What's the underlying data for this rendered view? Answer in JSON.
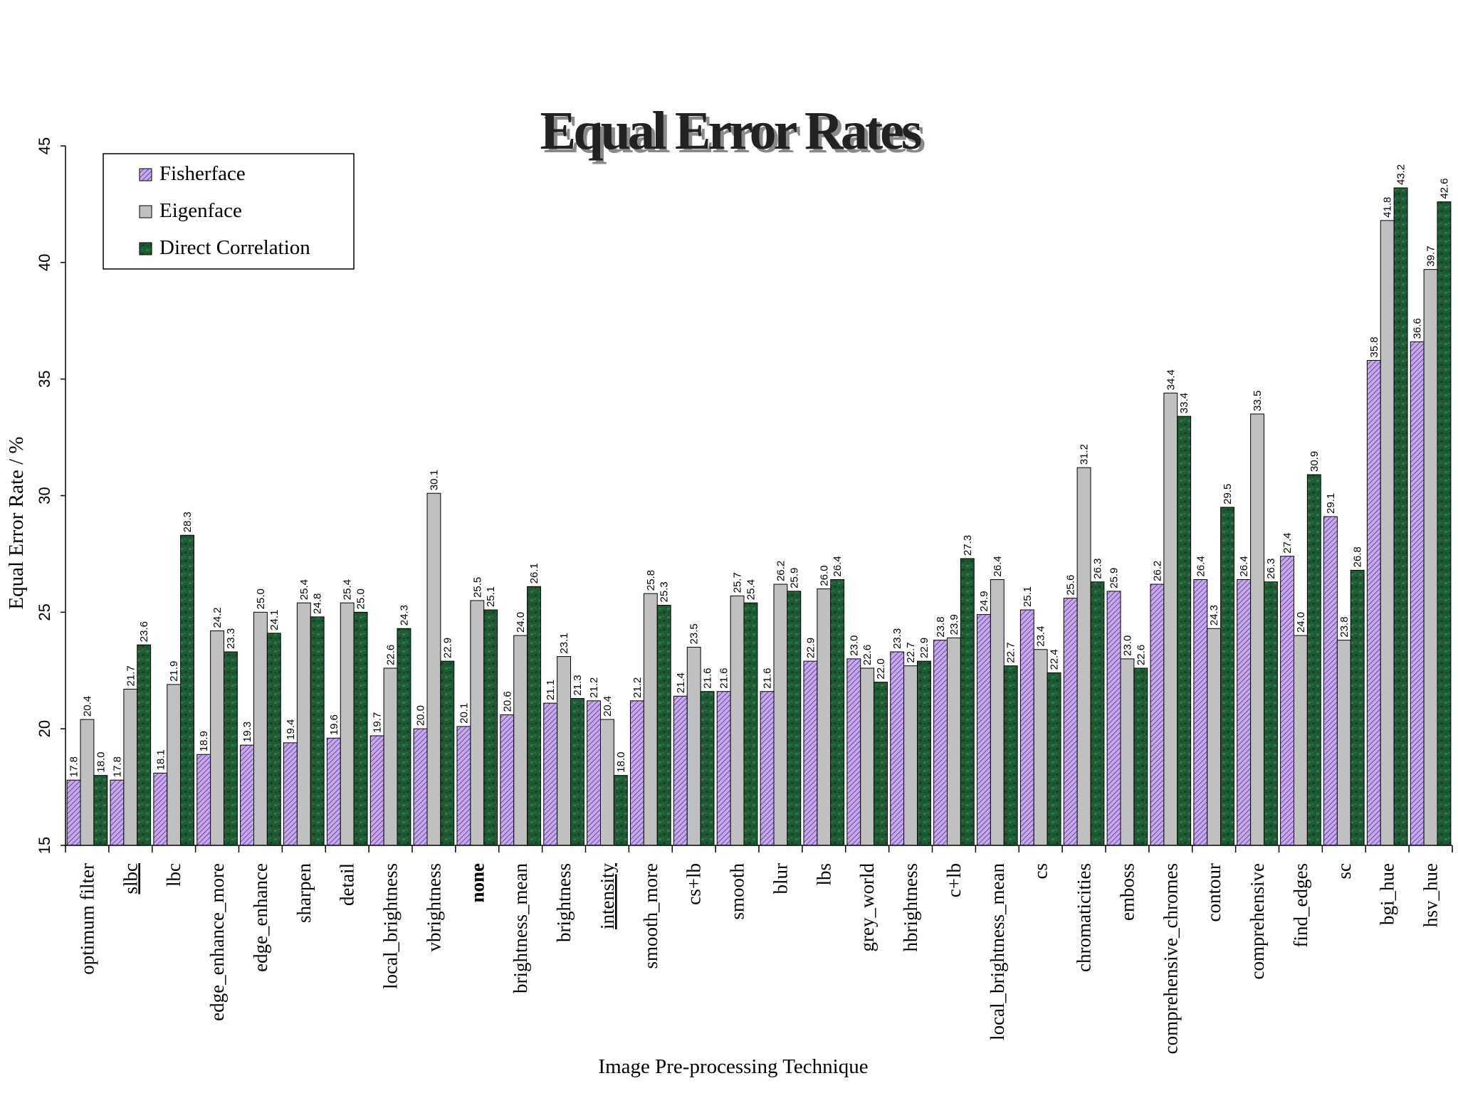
{
  "chart_data": {
    "type": "bar",
    "title": "Equal Error Rates",
    "xlabel": "Image Pre-processing Technique",
    "ylabel": "Equal Error Rate / %",
    "ylim": [
      15,
      45
    ],
    "yticks": [
      15,
      20,
      25,
      30,
      35,
      40,
      45
    ],
    "grid": false,
    "legend_position": "top-left",
    "categories": [
      "optimum filter",
      "slbc",
      "lbc",
      "edge_enhance_more",
      "edge_enhance",
      "sharpen",
      "detail",
      "local_brightness",
      "vbrightness",
      "none",
      "brightness_mean",
      "brightness",
      "intensity",
      "smooth_more",
      "cs+lb",
      "smooth",
      "blur",
      "lbs",
      "grey_world",
      "hbrightness",
      "c+lb",
      "local_brightness_mean",
      "cs",
      "chromaticities",
      "emboss",
      "comprehensive_chromes",
      "contour",
      "comprehensive",
      "find_edges",
      "sc",
      "bgi_hue",
      "hsv_hue"
    ],
    "category_styles": {
      "slbc": "underline",
      "intensity": "underline",
      "none": "bold"
    },
    "series": [
      {
        "name": "Fisherface",
        "color": "#b08fd8",
        "pattern": "hatched",
        "values": [
          17.8,
          17.8,
          18.1,
          18.9,
          19.3,
          19.4,
          19.6,
          19.7,
          20.0,
          20.1,
          20.6,
          21.1,
          21.2,
          21.2,
          21.4,
          21.6,
          21.6,
          22.9,
          23.0,
          23.3,
          23.8,
          24.9,
          25.1,
          25.6,
          25.9,
          26.2,
          26.4,
          26.4,
          27.4,
          29.1,
          35.8,
          36.6
        ],
        "labels": [
          "17.8",
          "17.8",
          "18.1",
          "18.9",
          "19.3",
          "19.4",
          "19.6",
          "19.7",
          "20.0",
          "20.1",
          "20.6",
          "21.1",
          "21.2",
          "21.2",
          "21.4",
          "21.6",
          "21.6",
          "22.9",
          "23.0",
          "23.3",
          "23.8",
          "24.9",
          "25.1",
          "25.6",
          "25.9",
          "26.2",
          "26.4",
          "26.4",
          "27.4",
          "29.1",
          "35.8",
          "36.6"
        ]
      },
      {
        "name": "Eigenface",
        "color": "#c0c0c0",
        "pattern": "solid",
        "values": [
          20.4,
          21.7,
          21.9,
          24.2,
          25.0,
          25.4,
          25.4,
          22.6,
          30.1,
          25.5,
          24.0,
          23.1,
          20.4,
          25.8,
          23.5,
          25.7,
          26.2,
          26.0,
          22.6,
          22.7,
          23.9,
          26.4,
          23.4,
          31.2,
          23.0,
          34.4,
          24.3,
          33.5,
          24.0,
          23.8,
          41.8,
          39.7
        ],
        "labels": [
          "20.4",
          "21.7",
          "21.9",
          "24.2",
          "25.0",
          "25.4",
          "25.4",
          "22.6",
          "30.1",
          "25.5",
          "24.0",
          "23.1",
          "20.4",
          "25.8",
          "23.5",
          "25.7",
          "26.2",
          "26.0",
          "22.6",
          "22.7",
          "23.9",
          "26.4",
          "23.4",
          "31.2",
          "23.0",
          "34.4",
          "24.3",
          "33.5",
          "24.0",
          "23.8",
          "41.8",
          "39.7"
        ]
      },
      {
        "name": "Direct Correlation",
        "color": "#1e5a34",
        "pattern": "mottled",
        "values": [
          18.0,
          23.6,
          28.3,
          23.3,
          24.1,
          24.8,
          25.0,
          24.3,
          22.9,
          25.1,
          26.1,
          21.3,
          18.0,
          25.3,
          21.6,
          25.4,
          25.9,
          26.4,
          22.0,
          22.9,
          27.3,
          22.7,
          22.4,
          26.3,
          22.6,
          33.4,
          29.5,
          26.3,
          30.9,
          26.8,
          43.2,
          42.6
        ],
        "labels": [
          "18.0",
          "23.6",
          "28.3",
          "23.3",
          "24.1",
          "24.8",
          "25.0",
          "24.3",
          "22.9",
          "25.1",
          "26.1",
          "21.3",
          "18.0",
          "25.3",
          "21.6",
          "25.4",
          "25.9",
          "26.4",
          "22.0",
          "22.9",
          "27.3",
          "22.7",
          "22.4",
          "26.3",
          "22.6",
          "33.4",
          "29.5",
          "26.3",
          "30.9",
          "26.8",
          "43.2",
          "42.6"
        ]
      }
    ]
  }
}
